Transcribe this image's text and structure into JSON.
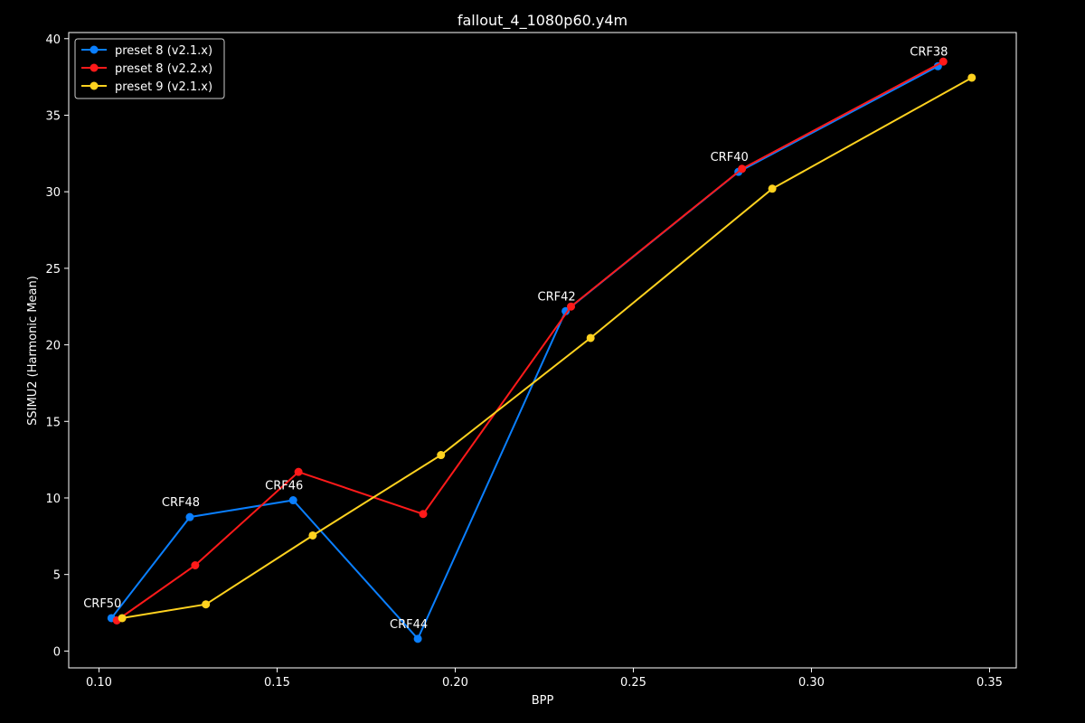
{
  "chart_data": {
    "type": "line",
    "title": "fallout_4_1080p60.y4m",
    "xlabel": "BPP",
    "ylabel": "SSIMU2 (Harmonic Mean)",
    "xlim": [
      0.0915,
      0.3575
    ],
    "ylim": [
      -1.1,
      40.4
    ],
    "xticks": [
      0.1,
      0.15,
      0.2,
      0.25,
      0.3,
      0.35
    ],
    "xtick_labels": [
      "0.10",
      "0.15",
      "0.20",
      "0.25",
      "0.30",
      "0.35"
    ],
    "yticks": [
      0,
      5,
      10,
      15,
      20,
      25,
      30,
      35,
      40
    ],
    "ytick_labels": [
      "0",
      "5",
      "10",
      "15",
      "20",
      "25",
      "30",
      "35",
      "40"
    ],
    "grid": false,
    "legend_position": "top-left",
    "series": [
      {
        "name": "preset 8 (v2.1.x)",
        "color": "#0a7fff",
        "points": [
          [
            0.1035,
            2.15
          ],
          [
            0.1255,
            8.75
          ],
          [
            0.1545,
            9.85
          ],
          [
            0.1895,
            0.8
          ],
          [
            0.231,
            22.2
          ],
          [
            0.2795,
            31.3
          ],
          [
            0.3355,
            38.2
          ]
        ]
      },
      {
        "name": "preset 8 (v2.2.x)",
        "color": "#ff1a1a",
        "points": [
          [
            0.105,
            2.0
          ],
          [
            0.127,
            5.6
          ],
          [
            0.156,
            11.7
          ],
          [
            0.191,
            8.95
          ],
          [
            0.2325,
            22.5
          ],
          [
            0.2805,
            31.5
          ],
          [
            0.337,
            38.5
          ]
        ]
      },
      {
        "name": "preset 9 (v2.1.x)",
        "color": "#ffd21f",
        "points": [
          [
            0.1065,
            2.15
          ],
          [
            0.13,
            3.05
          ],
          [
            0.16,
            7.55
          ],
          [
            0.196,
            12.8
          ],
          [
            0.238,
            20.45
          ],
          [
            0.289,
            30.2
          ],
          [
            0.345,
            37.45
          ]
        ]
      }
    ],
    "annotations": [
      {
        "text": "CRF50",
        "x": 0.1035,
        "y": 2.15
      },
      {
        "text": "CRF48",
        "x": 0.1255,
        "y": 8.75
      },
      {
        "text": "CRF46",
        "x": 0.1545,
        "y": 9.85
      },
      {
        "text": "CRF44",
        "x": 0.1895,
        "y": 0.8
      },
      {
        "text": "CRF42",
        "x": 0.231,
        "y": 22.2
      },
      {
        "text": "CRF40",
        "x": 0.2795,
        "y": 31.3
      },
      {
        "text": "CRF38",
        "x": 0.3355,
        "y": 38.2
      }
    ]
  }
}
